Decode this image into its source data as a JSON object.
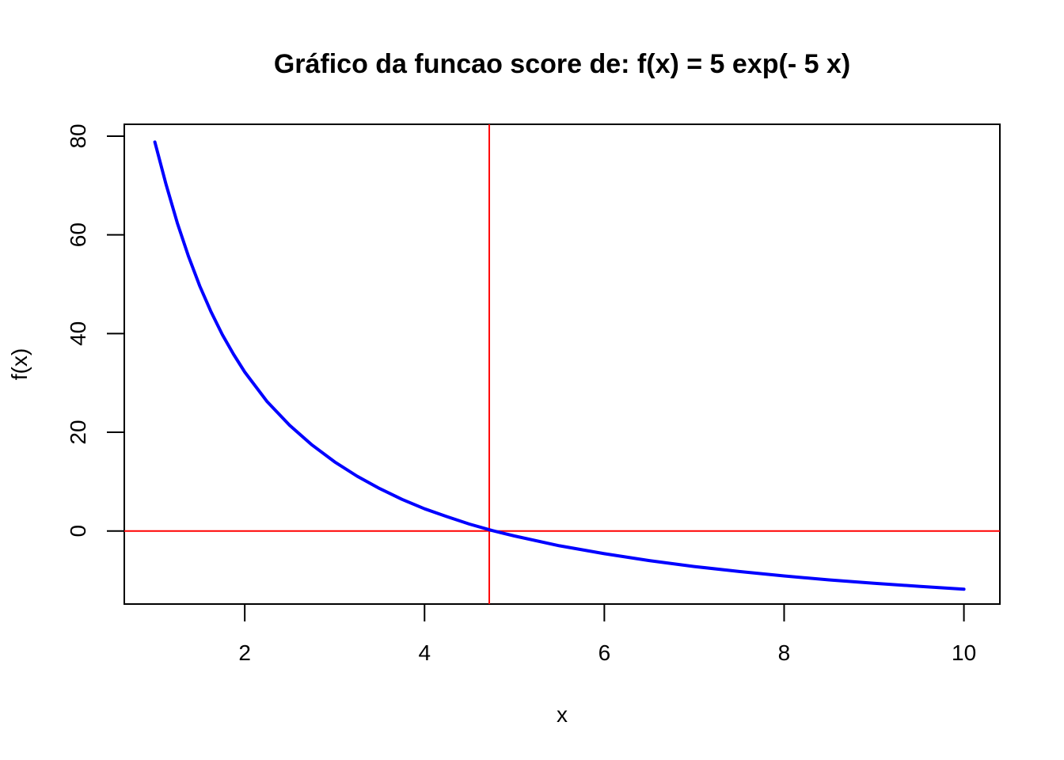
{
  "chart_data": {
    "type": "line",
    "title": "Gráfico da funcao score de: f(x) = 5 exp(- 5 x)",
    "xlabel": "x",
    "ylabel": "f(x)",
    "xlim": [
      0.66,
      10.4
    ],
    "ylim": [
      -14.8,
      82.4
    ],
    "x_ticks": [
      2,
      4,
      6,
      8,
      10
    ],
    "y_ticks": [
      0,
      20,
      40,
      60,
      80
    ],
    "grid": false,
    "legend": "none",
    "series": [
      {
        "color": "#0000ff",
        "x": [
          1.0,
          1.125,
          1.25,
          1.375,
          1.5,
          1.625,
          1.75,
          1.875,
          2.0,
          2.25,
          2.5,
          2.75,
          3.0,
          3.25,
          3.5,
          3.75,
          4.0,
          4.25,
          4.5,
          4.75,
          5.0,
          5.5,
          6.0,
          6.5,
          7.0,
          7.5,
          8.0,
          8.5,
          9.0,
          9.5,
          10.0
        ],
        "values": [
          78.8,
          70.2,
          62.4,
          55.6,
          49.6,
          44.4,
          39.8,
          35.8,
          32.2,
          26.2,
          21.4,
          17.4,
          14.0,
          11.1,
          8.6,
          6.4,
          4.5,
          2.9,
          1.4,
          0.1,
          -1.0,
          -3.0,
          -4.6,
          -6.0,
          -7.2,
          -8.2,
          -9.1,
          -9.9,
          -10.6,
          -11.2,
          -11.8
        ]
      }
    ],
    "reference_lines": [
      {
        "orientation": "vertical",
        "value": 4.72,
        "color": "#ff0000"
      },
      {
        "orientation": "horizontal",
        "value": 0,
        "color": "#ff0000"
      }
    ]
  }
}
